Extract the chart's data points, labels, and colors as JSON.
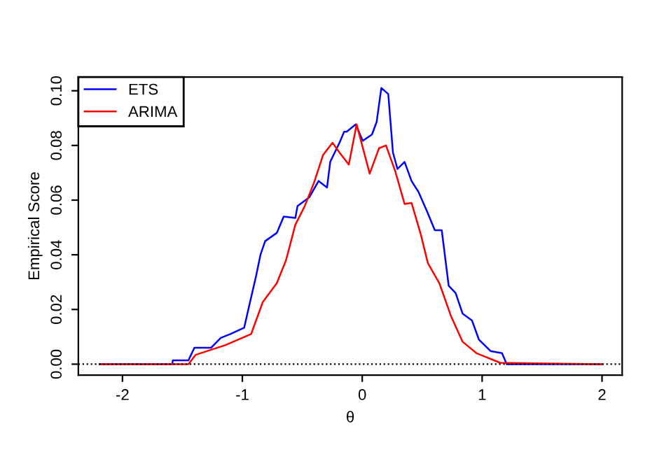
{
  "chart_data": {
    "type": "line",
    "xlabel": "θ",
    "ylabel": "Empirical Score",
    "xlim": [
      -2.368,
      2.168
    ],
    "ylim": [
      -0.004,
      0.105
    ],
    "xticks": [
      -2,
      -1,
      0,
      1,
      2
    ],
    "yticks": [
      {
        "value": 0,
        "label": "0.00"
      },
      {
        "value": 0.02,
        "label": "0.02"
      },
      {
        "value": 0.04,
        "label": "0.04"
      },
      {
        "value": 0.06,
        "label": "0.06"
      },
      {
        "value": 0.08,
        "label": "0.08"
      },
      {
        "value": 0.1,
        "label": "0.10"
      }
    ],
    "grid": false,
    "legend": "top left",
    "marker": "none",
    "line_style": "solid",
    "ref_lines": [
      {
        "axis": "y",
        "value": 0,
        "color": "#000000",
        "line_style": "dotted"
      }
    ],
    "series": [
      {
        "name": "ETS",
        "color": "#0000ff",
        "x": [
          -2.19,
          -1.585,
          -1.58,
          -1.45,
          -1.4,
          -1.26,
          -1.18,
          -1.1,
          -0.985,
          -0.945,
          -0.887,
          -0.849,
          -0.81,
          -0.713,
          -0.655,
          -0.558,
          -0.54,
          -0.442,
          -0.364,
          -0.294,
          -0.267,
          -0.19,
          -0.151,
          -0.13,
          -0.054,
          0.004,
          0.081,
          0.12,
          0.159,
          0.217,
          0.256,
          0.294,
          0.353,
          0.411,
          0.469,
          0.547,
          0.605,
          0.663,
          0.721,
          0.779,
          0.837,
          0.915,
          0.973,
          1.07,
          1.166,
          1.205,
          2.0
        ],
        "values": [
          0,
          0,
          0.0014,
          0.0014,
          0.006,
          0.006,
          0.0096,
          0.011,
          0.0133,
          0.021,
          0.032,
          0.04,
          0.045,
          0.048,
          0.054,
          0.0535,
          0.0578,
          0.061,
          0.067,
          0.0646,
          0.074,
          0.081,
          0.085,
          0.085,
          0.0877,
          0.0817,
          0.084,
          0.0886,
          0.101,
          0.0988,
          0.0774,
          0.0714,
          0.074,
          0.067,
          0.063,
          0.0552,
          0.049,
          0.049,
          0.0287,
          0.026,
          0.0185,
          0.016,
          0.009,
          0.0048,
          0.004,
          0,
          0
        ]
      },
      {
        "name": "ARIMA",
        "color": "#ff0000",
        "x": [
          -2.19,
          -1.45,
          -1.39,
          -1.14,
          -0.927,
          -0.83,
          -0.713,
          -0.636,
          -0.558,
          -0.48,
          -0.403,
          -0.326,
          -0.248,
          -0.19,
          -0.112,
          -0.047,
          0.062,
          0.14,
          0.198,
          0.275,
          0.353,
          0.411,
          0.488,
          0.547,
          0.643,
          0.74,
          0.837,
          0.953,
          1.15,
          2.0
        ],
        "values": [
          0,
          0,
          0.0034,
          0.007,
          0.011,
          0.0227,
          0.0296,
          0.038,
          0.051,
          0.0578,
          0.0663,
          0.0766,
          0.081,
          0.0774,
          0.073,
          0.0877,
          0.0697,
          0.079,
          0.08,
          0.0706,
          0.0586,
          0.059,
          0.0475,
          0.037,
          0.0296,
          0.0176,
          0.0082,
          0.004,
          0.0005,
          0
        ]
      }
    ]
  }
}
